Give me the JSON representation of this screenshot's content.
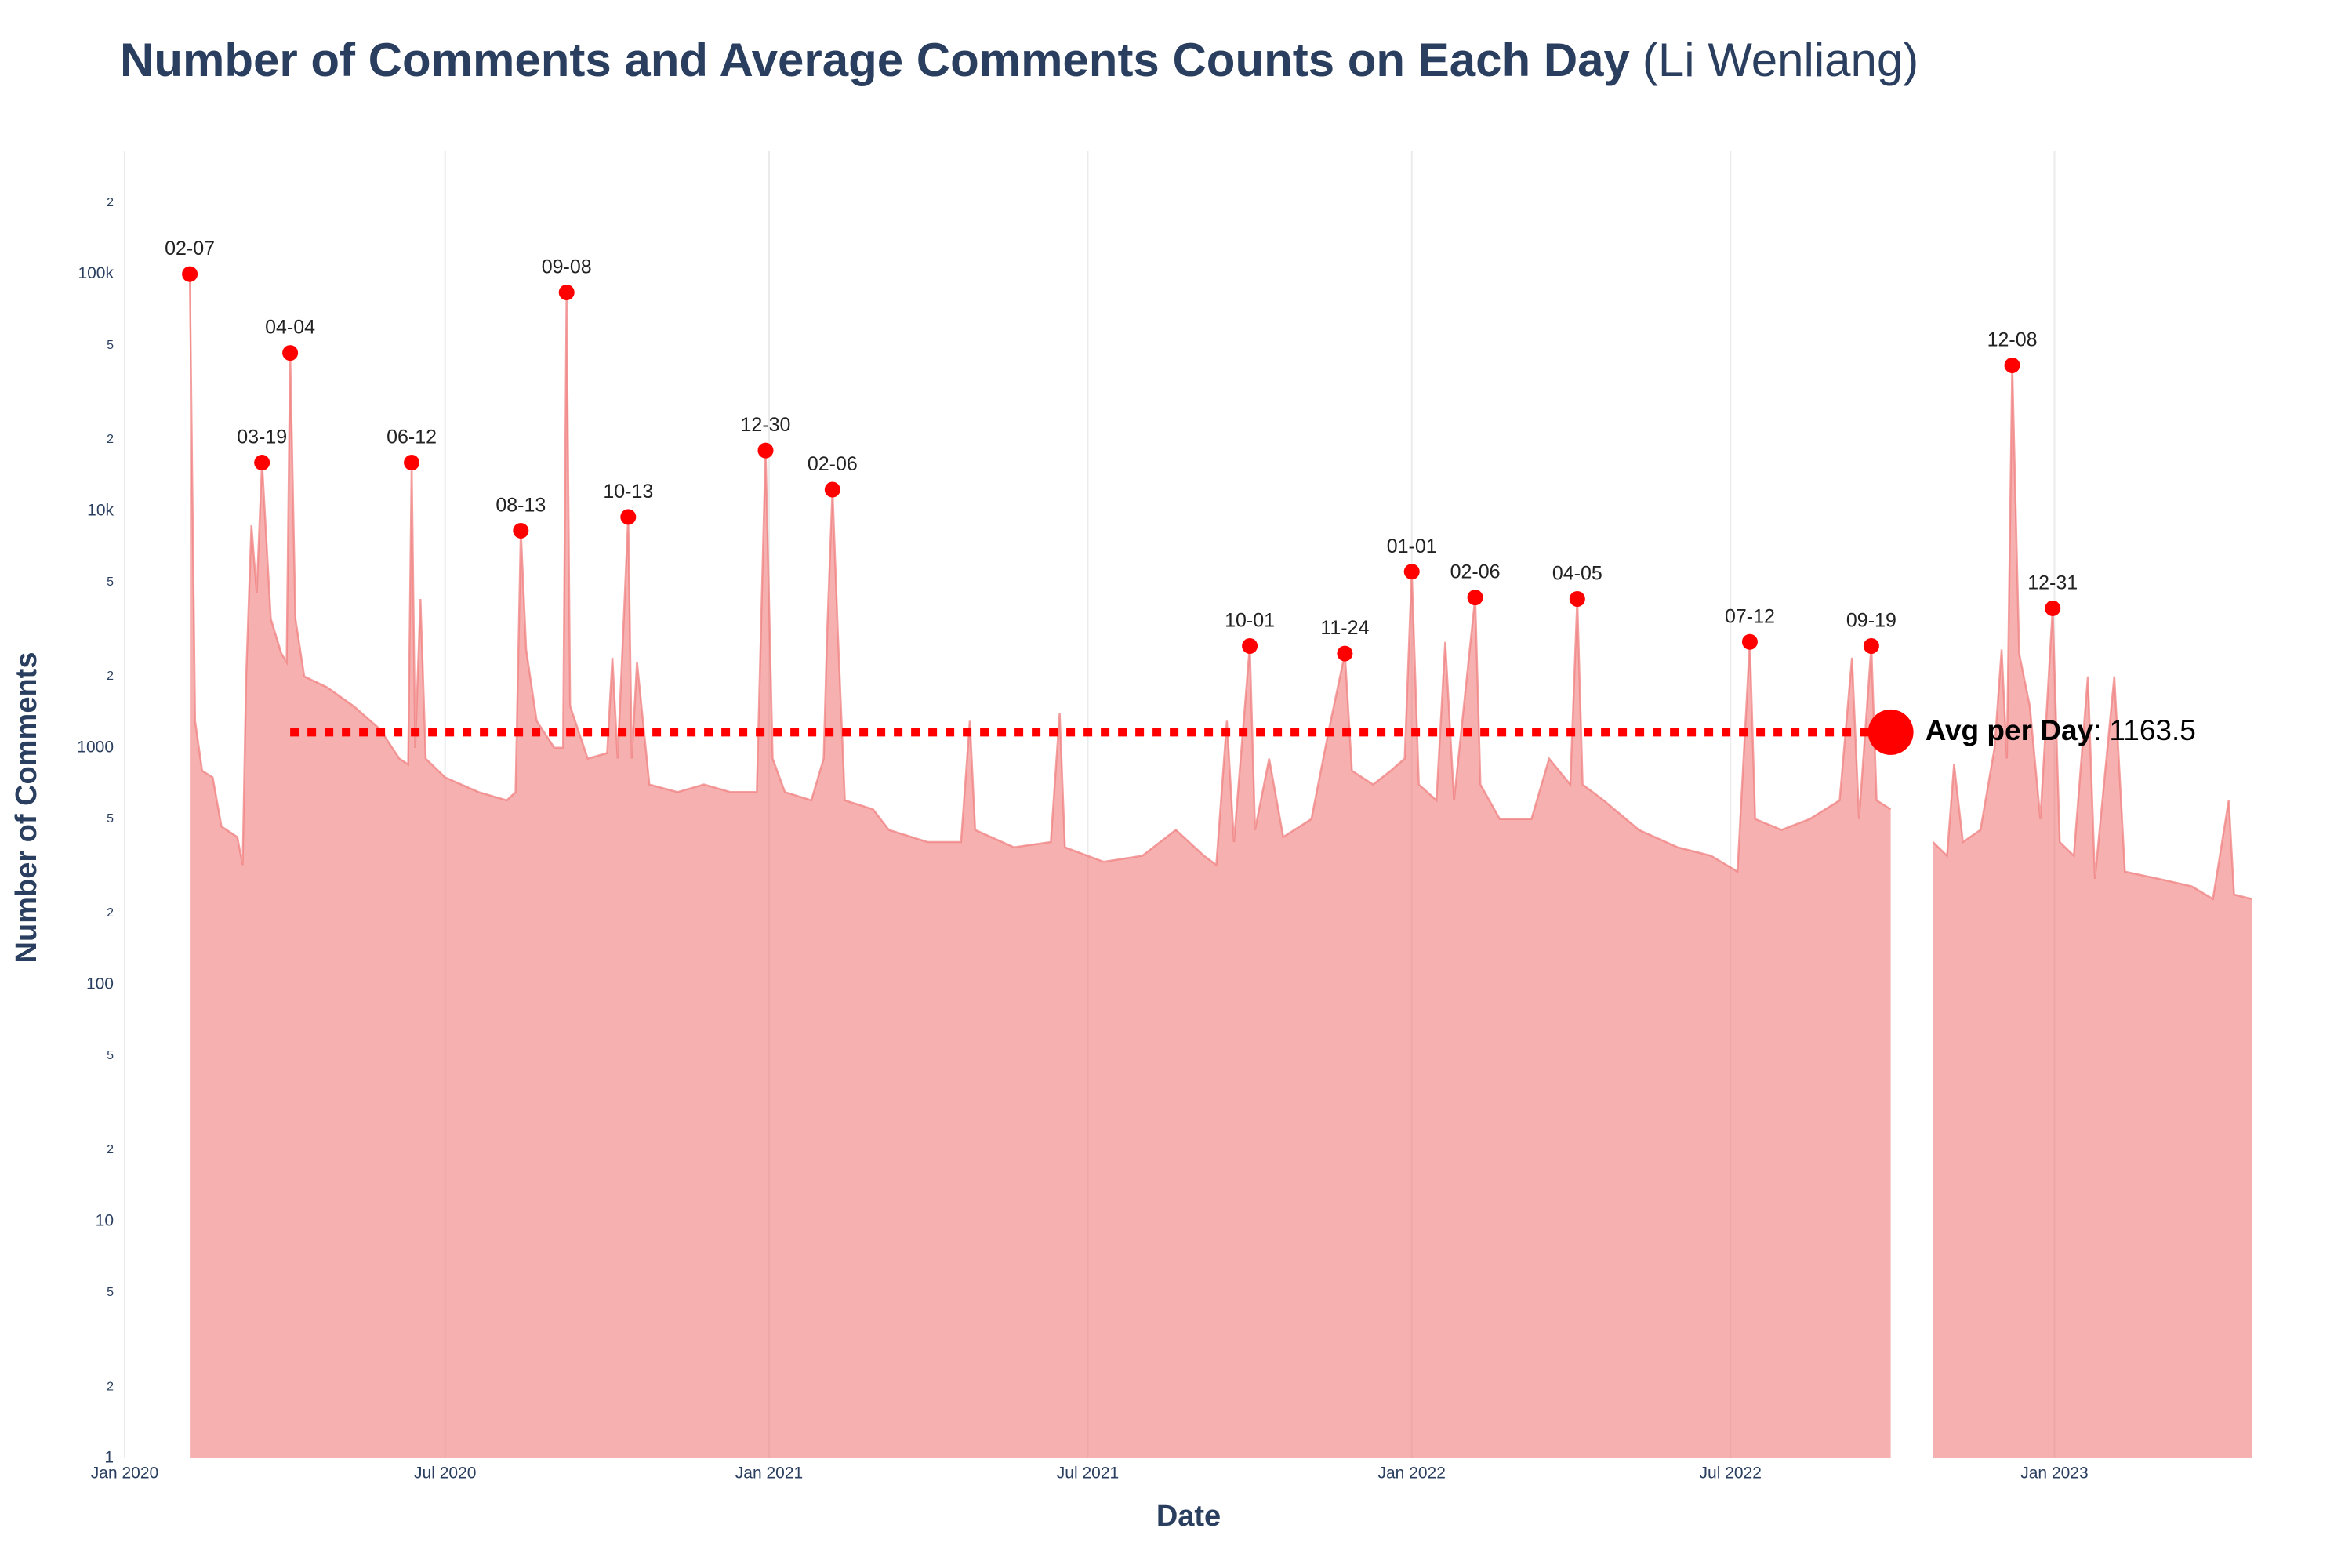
{
  "chart_data": {
    "type": "area",
    "title": "Number of Comments and Average Comments Counts on Each Day",
    "title_suffix": "(Li Wenliang)",
    "x_label": "Date",
    "y_label": "Number of Comments",
    "log_y": true,
    "grid_x": true,
    "xlim": [
      "2020-01-01",
      "2023-04-23"
    ],
    "ylim": [
      1,
      330000
    ],
    "xticks": [
      {
        "value": "2020-01-01",
        "label": "Jan 2020"
      },
      {
        "value": "2020-07-01",
        "label": "Jul 2020"
      },
      {
        "value": "2021-01-01",
        "label": "Jan 2021"
      },
      {
        "value": "2021-07-01",
        "label": "Jul 2021"
      },
      {
        "value": "2022-01-01",
        "label": "Jan 2022"
      },
      {
        "value": "2022-07-01",
        "label": "Jul 2022"
      },
      {
        "value": "2023-01-01",
        "label": "Jan 2023"
      }
    ],
    "yticks": [
      1,
      2,
      5,
      10,
      {
        "value": 20,
        "label": "2"
      },
      {
        "value": 50,
        "label": "5"
      },
      100,
      {
        "value": 200,
        "label": "2"
      },
      {
        "value": 500,
        "label": "5"
      },
      1000,
      {
        "value": 2000,
        "label": "2"
      },
      {
        "value": 5000,
        "label": "5"
      },
      {
        "value": 10000,
        "label": "10k"
      },
      {
        "value": 20000,
        "label": "2"
      },
      {
        "value": 50000,
        "label": "5"
      },
      {
        "value": 100000,
        "label": "100k"
      },
      {
        "value": 200000,
        "label": "2"
      }
    ],
    "series": [
      {
        "color": "#f08080",
        "x": [
          "2020-02-07",
          "2020-02-10",
          "2020-02-14",
          "2020-02-20",
          "2020-02-25",
          "2020-03-05",
          "2020-03-08",
          "2020-03-10",
          "2020-03-13",
          "2020-03-16",
          "2020-03-19",
          "2020-03-24",
          "2020-03-30",
          "2020-04-02",
          "2020-04-04",
          "2020-04-07",
          "2020-04-12",
          "2020-04-25",
          "2020-05-10",
          "2020-05-25",
          "2020-06-05",
          "2020-06-10",
          "2020-06-12",
          "2020-06-14",
          "2020-06-17",
          "2020-06-20",
          "2020-07-01",
          "2020-07-20",
          "2020-08-05",
          "2020-08-10",
          "2020-08-13",
          "2020-08-16",
          "2020-08-22",
          "2020-09-01",
          "2020-09-06",
          "2020-09-08",
          "2020-09-10",
          "2020-09-20",
          "2020-10-01",
          "2020-10-04",
          "2020-10-07",
          "2020-10-13",
          "2020-10-15",
          "2020-10-18",
          "2020-10-25",
          "2020-11-10",
          "2020-11-25",
          "2020-12-10",
          "2020-12-25",
          "2020-12-30",
          "2021-01-03",
          "2021-01-10",
          "2021-01-25",
          "2021-02-01",
          "2021-02-03",
          "2021-02-06",
          "2021-02-09",
          "2021-02-13",
          "2021-03-01",
          "2021-03-10",
          "2021-04-01",
          "2021-04-20",
          "2021-04-25",
          "2021-04-28",
          "2021-05-20",
          "2021-06-10",
          "2021-06-15",
          "2021-06-18",
          "2021-07-10",
          "2021-08-01",
          "2021-08-20",
          "2021-09-05",
          "2021-09-12",
          "2021-09-18",
          "2021-09-22",
          "2021-10-01",
          "2021-10-04",
          "2021-10-12",
          "2021-10-20",
          "2021-11-05",
          "2021-11-15",
          "2021-11-24",
          "2021-11-28",
          "2021-12-10",
          "2021-12-20",
          "2021-12-28",
          "2022-01-01",
          "2022-01-05",
          "2022-01-15",
          "2022-01-20",
          "2022-01-25",
          "2022-02-06",
          "2022-02-09",
          "2022-02-20",
          "2022-03-10",
          "2022-03-20",
          "2022-04-01",
          "2022-04-05",
          "2022-04-08",
          "2022-04-20",
          "2022-05-10",
          "2022-06-01",
          "2022-06-20",
          "2022-07-05",
          "2022-07-12",
          "2022-07-15",
          "2022-07-30",
          "2022-08-15",
          "2022-09-01",
          "2022-09-08",
          "2022-09-12",
          "2022-09-19",
          "2022-09-22",
          "2022-09-30",
          "2022-10-10",
          "2022-10-24",
          "2022-11-01",
          "2022-11-05",
          "2022-11-10",
          "2022-11-20",
          "2022-11-28",
          "2022-12-02",
          "2022-12-05",
          "2022-12-08",
          "2022-12-12",
          "2022-12-18",
          "2022-12-24",
          "2022-12-31",
          "2023-01-04",
          "2023-01-12",
          "2023-01-20",
          "2023-01-24",
          "2023-02-04",
          "2023-02-10",
          "2023-03-01",
          "2023-03-20",
          "2023-04-01",
          "2023-04-10",
          "2023-04-13",
          "2023-04-23"
        ],
        "values": [
          100000,
          1300,
          800,
          750,
          465,
          420,
          320,
          2000,
          8700,
          4500,
          16000,
          3500,
          2500,
          2300,
          46500,
          3500,
          2000,
          1800,
          1500,
          1200,
          900,
          850,
          16000,
          1000,
          4250,
          900,
          750,
          650,
          600,
          650,
          8250,
          2600,
          1300,
          1000,
          1000,
          83700,
          1500,
          900,
          950,
          2400,
          900,
          9430,
          900,
          2300,
          700,
          650,
          700,
          650,
          650,
          18000,
          900,
          650,
          600,
          900,
          3100,
          12300,
          3100,
          600,
          550,
          450,
          400,
          400,
          1300,
          450,
          380,
          400,
          1400,
          380,
          330,
          350,
          450,
          350,
          320,
          1300,
          400,
          2690,
          450,
          900,
          420,
          500,
          1200,
          2500,
          800,
          700,
          800,
          900,
          5540,
          700,
          600,
          2800,
          600,
          4310,
          700,
          500,
          500,
          900,
          700,
          4250,
          700,
          600,
          450,
          380,
          350,
          300,
          2800,
          500,
          450,
          500,
          600,
          2400,
          500,
          2690,
          600,
          550,
          null,
          400,
          350,
          850,
          400,
          450,
          1000,
          2600,
          900,
          41200,
          2500,
          1500,
          500,
          3880,
          400,
          350,
          2000,
          280,
          2000,
          300,
          280,
          260,
          230,
          600,
          240,
          230
        ]
      }
    ],
    "peaks": {
      "color": "#ff0000",
      "x": [
        "2020-02-07",
        "2020-03-19",
        "2020-04-04",
        "2020-06-12",
        "2020-08-13",
        "2020-09-08",
        "2020-10-13",
        "2020-12-30",
        "2021-02-06",
        "2021-10-01",
        "2021-11-24",
        "2022-01-01",
        "2022-02-06",
        "2022-04-05",
        "2022-07-12",
        "2022-09-19",
        "2022-12-08",
        "2022-12-31"
      ],
      "values": [
        100000,
        16000,
        46500,
        16000,
        8250,
        83700,
        9430,
        18000,
        12300,
        2690,
        2500,
        5540,
        4310,
        4250,
        2800,
        2690,
        41200,
        3880
      ],
      "labels": [
        "02-07",
        "03-19",
        "04-04",
        "06-12",
        "08-13",
        "09-08",
        "10-13",
        "12-30",
        "02-06",
        "10-01",
        "11-24",
        "01-01",
        "02-06",
        "04-05",
        "07-12",
        "09-19",
        "12-08",
        "12-31"
      ]
    },
    "avg": {
      "label": "Avg per Day",
      "separator": ":",
      "value": 1163.5,
      "x": [
        "2020-04-04",
        "2022-09-30"
      ],
      "color": "#ff0000"
    }
  }
}
